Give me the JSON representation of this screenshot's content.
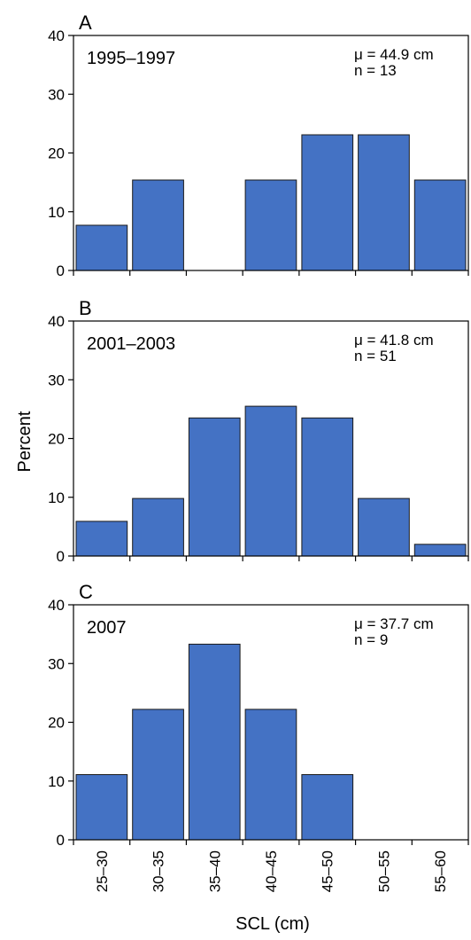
{
  "figure": {
    "ylabel": "Percent",
    "xlabel": "SCL (cm)"
  },
  "chart_data": [
    {
      "type": "bar",
      "panel": "A",
      "period": "1995–1997",
      "mean_label": "μ = 44.9 cm",
      "n_label": "n = 13",
      "categories": [
        "25–30",
        "30–35",
        "35–40",
        "40–45",
        "45–50",
        "50–55",
        "55–60"
      ],
      "values": [
        7.7,
        15.4,
        0,
        15.4,
        23.1,
        23.1,
        15.4
      ],
      "ylim": [
        0,
        40
      ],
      "yticks": [
        0,
        10,
        20,
        30,
        40
      ],
      "bar_color": "#4472c4"
    },
    {
      "type": "bar",
      "panel": "B",
      "period": "2001–2003",
      "mean_label": "μ = 41.8 cm",
      "n_label": "n = 51",
      "categories": [
        "25–30",
        "30–35",
        "35–40",
        "40–45",
        "45–50",
        "50–55",
        "55–60"
      ],
      "values": [
        5.9,
        9.8,
        23.5,
        25.5,
        23.5,
        9.8,
        2.0
      ],
      "ylim": [
        0,
        40
      ],
      "yticks": [
        0,
        10,
        20,
        30,
        40
      ],
      "bar_color": "#4472c4"
    },
    {
      "type": "bar",
      "panel": "C",
      "period": "2007",
      "mean_label": "μ = 37.7 cm",
      "n_label": "n = 9",
      "categories": [
        "25–30",
        "30–35",
        "35–40",
        "40–45",
        "45–50",
        "50–55",
        "55–60"
      ],
      "values": [
        11.1,
        22.2,
        33.3,
        22.2,
        11.1,
        0,
        0
      ],
      "ylim": [
        0,
        40
      ],
      "yticks": [
        0,
        10,
        20,
        30,
        40
      ],
      "bar_color": "#4472c4"
    }
  ]
}
